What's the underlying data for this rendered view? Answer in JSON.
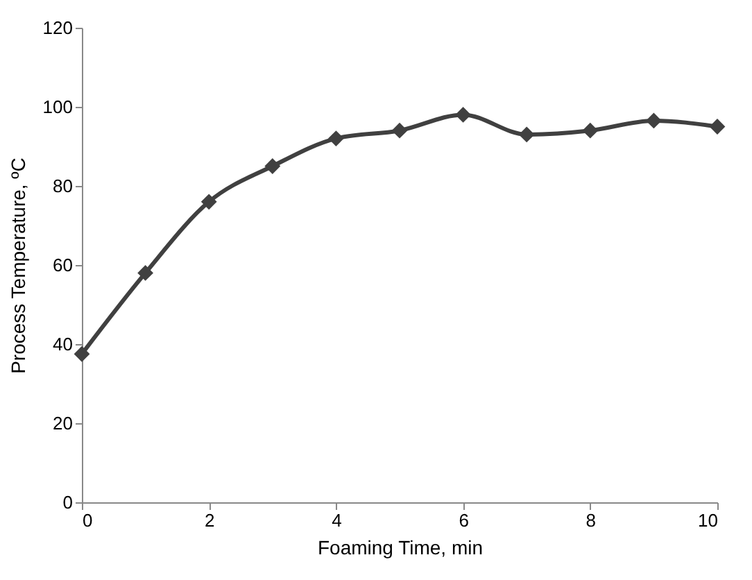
{
  "chart_data": {
    "type": "line",
    "xlabel": "Foaming Time, min",
    "ylabel": "Process Temperature, ºC",
    "x": [
      0,
      1,
      2,
      3,
      4,
      5,
      6,
      7,
      8,
      9,
      10
    ],
    "series": [
      {
        "color": "#404040",
        "values": [
          37.5,
          58,
          76,
          85,
          92,
          94,
          98,
          93,
          94,
          96.5,
          95
        ]
      }
    ],
    "xlim": [
      0,
      10
    ],
    "xticks": [
      0,
      2,
      4,
      6,
      8,
      10
    ],
    "ylim": [
      0,
      120
    ],
    "yticks": [
      0,
      20,
      40,
      60,
      80,
      100,
      120
    ],
    "grid": false,
    "marker": "diamond",
    "line_style": "solid"
  }
}
